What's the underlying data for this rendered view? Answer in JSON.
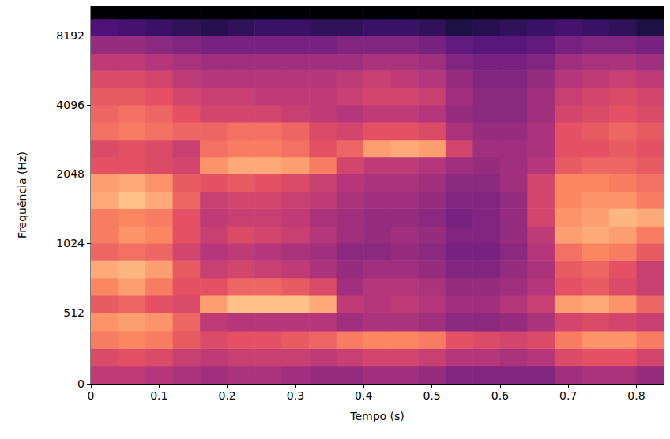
{
  "chart_data": {
    "type": "heatmap",
    "x_label": "Tempo (s)",
    "y_label": "Frequência (Hz)",
    "log": "y",
    "xlim": [
      0,
      0.84
    ],
    "xticks": [
      0,
      0.1,
      0.2,
      0.3,
      0.4,
      0.5,
      0.6,
      0.7,
      0.8
    ],
    "ylim": [
      0,
      11025
    ],
    "yticks": [
      0,
      512,
      1024,
      2048,
      4096,
      8192
    ],
    "zlim": [
      -80,
      0
    ],
    "x_edges": [
      0,
      0.04,
      0.08,
      0.12,
      0.16,
      0.2,
      0.24,
      0.28,
      0.32,
      0.36,
      0.4,
      0.44,
      0.48,
      0.52,
      0.56,
      0.6,
      0.64,
      0.68,
      0.72,
      0.76,
      0.8,
      0.84
    ],
    "y_edges": [
      0,
      128,
      256,
      384,
      512,
      640,
      768,
      896,
      1024,
      1218,
      1448,
      1722,
      2048,
      2435,
      2896,
      3444,
      4096,
      4871,
      5793,
      6889,
      8192,
      9742,
      11025
    ],
    "cells": [
      [
        -38,
        -38,
        -40,
        -42,
        -44,
        -42,
        -42,
        -44,
        -46,
        -46,
        -44,
        -44,
        -46,
        -50,
        -50,
        -50,
        -50,
        -44,
        -42,
        -42,
        -46
      ],
      [
        -32,
        -30,
        -32,
        -36,
        -38,
        -36,
        -36,
        -36,
        -38,
        -36,
        -34,
        -34,
        -36,
        -40,
        -40,
        -42,
        -40,
        -32,
        -30,
        -30,
        -34
      ],
      [
        -22,
        -20,
        -22,
        -28,
        -32,
        -30,
        -30,
        -28,
        -26,
        -22,
        -20,
        -20,
        -22,
        -30,
        -32,
        -34,
        -32,
        -22,
        -18,
        -18,
        -22
      ],
      [
        -18,
        -16,
        -18,
        -26,
        -38,
        -40,
        -40,
        -40,
        -40,
        -44,
        -42,
        -42,
        -44,
        -48,
        -48,
        -46,
        -42,
        -34,
        -32,
        -34,
        -36
      ],
      [
        -28,
        -26,
        -30,
        -32,
        -16,
        -10,
        -10,
        -10,
        -14,
        -38,
        -40,
        -38,
        -40,
        -44,
        -44,
        -40,
        -36,
        -16,
        -14,
        -18,
        -26
      ],
      [
        -20,
        -16,
        -22,
        -30,
        -30,
        -26,
        -26,
        -28,
        -32,
        -44,
        -40,
        -40,
        -42,
        -46,
        -46,
        -44,
        -40,
        -30,
        -28,
        -32,
        -36
      ],
      [
        -14,
        -12,
        -16,
        -28,
        -36,
        -34,
        -36,
        -38,
        -42,
        -46,
        -44,
        -44,
        -46,
        -50,
        -50,
        -46,
        -42,
        -28,
        -26,
        -30,
        -36
      ],
      [
        -26,
        -24,
        -26,
        -34,
        -40,
        -38,
        -40,
        -42,
        -44,
        -48,
        -48,
        -46,
        -48,
        -52,
        -52,
        -48,
        -40,
        -24,
        -20,
        -22,
        -28
      ],
      [
        -22,
        -18,
        -20,
        -30,
        -36,
        -32,
        -34,
        -36,
        -40,
        -44,
        -46,
        -44,
        -46,
        -50,
        -50,
        -46,
        -38,
        -16,
        -14,
        -16,
        -22
      ],
      [
        -22,
        -20,
        -22,
        -30,
        -38,
        -36,
        -36,
        -38,
        -42,
        -44,
        -46,
        -46,
        -48,
        -52,
        -50,
        -46,
        -34,
        -18,
        -16,
        -12,
        -14
      ],
      [
        -14,
        -10,
        -14,
        -26,
        -36,
        -34,
        -34,
        -36,
        -38,
        -42,
        -44,
        -44,
        -46,
        -50,
        -50,
        -46,
        -34,
        -20,
        -18,
        -18,
        -22
      ],
      [
        -16,
        -14,
        -18,
        -28,
        -30,
        -28,
        -30,
        -32,
        -36,
        -40,
        -42,
        -42,
        -44,
        -48,
        -48,
        -44,
        -34,
        -20,
        -20,
        -22,
        -24
      ],
      [
        -30,
        -30,
        -32,
        -34,
        -18,
        -14,
        -14,
        -16,
        -22,
        -34,
        -38,
        -38,
        -40,
        -44,
        -46,
        -44,
        -40,
        -28,
        -26,
        -26,
        -28
      ],
      [
        -32,
        -30,
        -32,
        -36,
        -24,
        -22,
        -22,
        -24,
        -30,
        -26,
        -16,
        -14,
        -16,
        -34,
        -44,
        -44,
        -42,
        -30,
        -30,
        -28,
        -30
      ],
      [
        -24,
        -22,
        -24,
        -26,
        -26,
        -24,
        -24,
        -26,
        -32,
        -34,
        -30,
        -30,
        -32,
        -42,
        -46,
        -46,
        -42,
        -30,
        -28,
        -26,
        -28
      ],
      [
        -26,
        -24,
        -26,
        -30,
        -34,
        -34,
        -34,
        -36,
        -38,
        -40,
        -38,
        -38,
        -40,
        -46,
        -48,
        -48,
        -44,
        -34,
        -32,
        -30,
        -32
      ],
      [
        -28,
        -28,
        -30,
        -34,
        -36,
        -36,
        -38,
        -38,
        -38,
        -36,
        -34,
        -34,
        -36,
        -44,
        -48,
        -48,
        -44,
        -36,
        -34,
        -32,
        -34
      ],
      [
        -32,
        -32,
        -34,
        -38,
        -40,
        -40,
        -40,
        -40,
        -40,
        -38,
        -36,
        -38,
        -40,
        -46,
        -50,
        -50,
        -46,
        -40,
        -38,
        -36,
        -38
      ],
      [
        -38,
        -38,
        -40,
        -42,
        -44,
        -44,
        -44,
        -44,
        -44,
        -44,
        -42,
        -42,
        -44,
        -50,
        -52,
        -52,
        -50,
        -44,
        -42,
        -42,
        -44
      ],
      [
        -46,
        -46,
        -48,
        -50,
        -52,
        -52,
        -52,
        -52,
        -52,
        -50,
        -50,
        -50,
        -52,
        -56,
        -58,
        -58,
        -56,
        -52,
        -50,
        -50,
        -52
      ],
      [
        -60,
        -62,
        -64,
        -66,
        -68,
        -66,
        -64,
        -64,
        -66,
        -66,
        -64,
        -64,
        -66,
        -70,
        -68,
        -66,
        -64,
        -62,
        -64,
        -66,
        -70
      ],
      [
        -80,
        -80,
        -80,
        -80,
        -80,
        -80,
        -80,
        -80,
        -80,
        -80,
        -80,
        -80,
        -80,
        -80,
        -80,
        -80,
        -80,
        -80,
        -80,
        -80,
        -80
      ]
    ]
  }
}
